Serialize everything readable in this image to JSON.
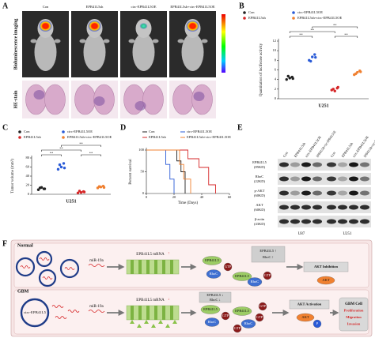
{
  "panel_labels": [
    "A",
    "B",
    "C",
    "D",
    "E",
    "F"
  ],
  "panel_a": {
    "columns": [
      "Con",
      "EPB41L5sh",
      "circ-EPB41L5OE",
      "EPB41L5sh+circ-EPB41L5OE"
    ],
    "row_labels": [
      "Bioluminescence imaging",
      "HE-stain"
    ]
  },
  "chart_data": [
    {
      "type": "dot",
      "ylabel": "Quantitation of luciferase activity",
      "xlabel": "U251",
      "ylim": [
        0,
        12
      ],
      "yticks": [
        0,
        2,
        4,
        6,
        8,
        10,
        12
      ],
      "series": [
        {
          "name": "Con",
          "color": "#222222",
          "values": [
            4.0,
            4.5,
            4.3,
            4.7,
            4.2
          ]
        },
        {
          "name": "circ-EPB41L5OE",
          "color": "#2a5bd7",
          "values": [
            8.0,
            9.2,
            8.7,
            7.8,
            8.6
          ]
        },
        {
          "name": "EPB41L5sh",
          "color": "#d62728",
          "values": [
            1.8,
            2.2,
            1.6,
            2.0,
            2.4
          ]
        },
        {
          "name": "EPB41L5sh+circ-EPB41L5OE",
          "color": "#f08030",
          "values": [
            5.0,
            5.8,
            5.5,
            5.2,
            5.6
          ]
        }
      ],
      "annotations": [
        "**",
        "**",
        "**",
        "**"
      ]
    },
    {
      "type": "dot",
      "ylabel": "Tumor volume (mm³)",
      "xlabel": "U251",
      "ylim": [
        0,
        80
      ],
      "yticks": [
        0,
        20,
        40,
        60,
        80
      ],
      "series": [
        {
          "name": "Con",
          "color": "#222222",
          "values": [
            10,
            12,
            15,
            14,
            12
          ]
        },
        {
          "name": "circ-EPB41L5OE",
          "color": "#2a5bd7",
          "values": [
            55,
            68,
            60,
            65,
            58
          ]
        },
        {
          "name": "EPB41L5sh",
          "color": "#d62728",
          "values": [
            3,
            6,
            4,
            7,
            5
          ]
        },
        {
          "name": "EPB41L5sh+circ-EPB41L5OE",
          "color": "#f08030",
          "values": [
            14,
            18,
            16,
            17,
            15
          ]
        }
      ],
      "annotations": [
        "**",
        "**",
        "**",
        "**"
      ]
    },
    {
      "type": "survival",
      "ylabel": "Percent survival",
      "xlabel": "Time (Days)",
      "xlim": [
        0,
        60
      ],
      "xticks": [
        0,
        20,
        40,
        60
      ],
      "ylim": [
        0,
        100
      ],
      "yticks": [
        0,
        50,
        100
      ],
      "series": [
        {
          "name": "Con",
          "color": "#222222",
          "x": [
            0,
            22,
            22,
            25,
            25,
            28,
            28
          ],
          "values": [
            100,
            100,
            75,
            75,
            50,
            50,
            0
          ]
        },
        {
          "name": "circ-EPB41L5OE",
          "color": "#2a5bd7",
          "x": [
            0,
            14,
            14,
            17,
            17,
            20,
            20
          ],
          "values": [
            100,
            100,
            67,
            67,
            33,
            33,
            0
          ]
        },
        {
          "name": "EPB41L5sh",
          "color": "#d62728",
          "x": [
            0,
            30,
            30,
            38,
            38,
            45,
            45,
            50,
            50
          ],
          "values": [
            100,
            100,
            80,
            80,
            60,
            60,
            20,
            20,
            0
          ]
        },
        {
          "name": "EPB41L5sh+circ-EPB41L5OE",
          "color": "#f08030",
          "x": [
            0,
            24,
            24,
            27,
            27,
            32,
            32
          ],
          "values": [
            100,
            100,
            67,
            67,
            33,
            33,
            0
          ]
        }
      ]
    }
  ],
  "panel_e": {
    "columns": [
      "Con",
      "EPB41L5sh",
      "circ-EPB41L5OE",
      "EPB41L5sh+circ-EPB41L5OE",
      "Con",
      "EPB41L5sh",
      "circ-EPB41L5OE",
      "EPB41L5sh+circ-EPB41L5OE"
    ],
    "rows": [
      {
        "name": "EPB41L5",
        "size": "(85KD)"
      },
      {
        "name": "RhoC",
        "size": "(22KD)"
      },
      {
        "name": "p-AKT",
        "size": "(60KD)"
      },
      {
        "name": "AKT",
        "size": "(60KD)"
      },
      {
        "name": "β-actin",
        "size": "(43KD)"
      }
    ],
    "groups": [
      "U87",
      "U251"
    ]
  },
  "panel_f": {
    "normal": {
      "label": "Normal",
      "mir": "miR-19a",
      "mrna": "EPB41L5 mRNA",
      "mrna_arrow": "↑",
      "proteins": [
        "EPB41L5",
        "RhoC",
        "GTP"
      ],
      "summary": [
        "EPB41L5 ↑",
        "RhoC ↑"
      ],
      "outcome": "AKT Inhibition",
      "akt": "AKT"
    },
    "gbm": {
      "label": "GBM",
      "circ": "circ-EPB41L5",
      "mir": "miR-19a",
      "mrna": "EPB41L5 mRNA",
      "mrna_arrow": "↓",
      "proteins": [
        "EPB41L5",
        "RhoC",
        "GTP"
      ],
      "summary": [
        "EPB41L5 ↓",
        "RhoC ↓"
      ],
      "outcome": "AKT Activation",
      "akt": "AKT",
      "p": "P",
      "cell": [
        "GBM Cell",
        "Proliferation",
        "Migration",
        "Invasion"
      ]
    }
  }
}
